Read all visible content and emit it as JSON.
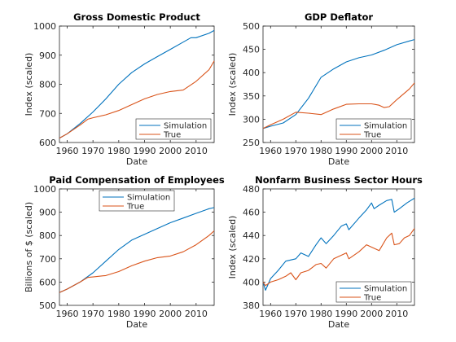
{
  "colors": {
    "simulation": "#0072bd",
    "true": "#d95319"
  },
  "chart_data": [
    {
      "type": "line",
      "title": "Gross Domestic Product",
      "xlabel": "Date",
      "ylabel": "Index (scaled)",
      "xlim": [
        1957,
        2017
      ],
      "ylim": [
        600,
        1000
      ],
      "xticks": [
        "1960",
        "1970",
        "1980",
        "1990",
        "2000",
        "2010"
      ],
      "yticks": [
        "600",
        "700",
        "800",
        "900",
        "1000"
      ],
      "legend": {
        "position": "bottom-right",
        "labels": [
          "Simulation",
          "True"
        ]
      },
      "series": [
        {
          "name": "Simulation",
          "color_key": "simulation",
          "x": [
            1957,
            1960,
            1965,
            1970,
            1975,
            1980,
            1985,
            1990,
            1995,
            2000,
            2005,
            2008,
            2010,
            2015,
            2017
          ],
          "y": [
            615,
            630,
            665,
            705,
            750,
            800,
            840,
            870,
            895,
            920,
            945,
            960,
            960,
            975,
            985
          ]
        },
        {
          "name": "True",
          "color_key": "true",
          "x": [
            1957,
            1960,
            1965,
            1968,
            1970,
            1975,
            1980,
            1985,
            1990,
            1995,
            2000,
            2005,
            2010,
            2015,
            2017
          ],
          "y": [
            615,
            630,
            660,
            680,
            685,
            695,
            710,
            730,
            750,
            765,
            775,
            780,
            810,
            850,
            880
          ]
        }
      ]
    },
    {
      "type": "line",
      "title": "GDP Deflator",
      "xlabel": "Date",
      "ylabel": "Index (scaled)",
      "xlim": [
        1957,
        2017
      ],
      "ylim": [
        250,
        500
      ],
      "xticks": [
        "1960",
        "1970",
        "1980",
        "1990",
        "2000",
        "2010"
      ],
      "yticks": [
        "250",
        "300",
        "350",
        "400",
        "450",
        "500"
      ],
      "legend": {
        "position": "bottom-right",
        "labels": [
          "Simulation",
          "True"
        ]
      },
      "series": [
        {
          "name": "Simulation",
          "color_key": "simulation",
          "x": [
            1957,
            1960,
            1965,
            1970,
            1975,
            1980,
            1985,
            1990,
            1995,
            2000,
            2005,
            2010,
            2015,
            2017
          ],
          "y": [
            280,
            285,
            292,
            310,
            345,
            390,
            408,
            423,
            432,
            438,
            448,
            460,
            468,
            471
          ]
        },
        {
          "name": "True",
          "color_key": "true",
          "x": [
            1957,
            1960,
            1965,
            1970,
            1975,
            1980,
            1985,
            1990,
            1995,
            2000,
            2003,
            2005,
            2007,
            2010,
            2015,
            2017
          ],
          "y": [
            280,
            288,
            300,
            315,
            313,
            310,
            322,
            332,
            333,
            333,
            330,
            325,
            327,
            342,
            365,
            378
          ]
        }
      ]
    },
    {
      "type": "line",
      "title": "Paid Compensation of Employees",
      "xlabel": "Date",
      "ylabel": "Billions of $ (scaled)",
      "xlim": [
        1957,
        2017
      ],
      "ylim": [
        500,
        1000
      ],
      "xticks": [
        "1960",
        "1970",
        "1980",
        "1990",
        "2000",
        "2010"
      ],
      "yticks": [
        "500",
        "600",
        "700",
        "800",
        "900",
        "1000"
      ],
      "legend": {
        "position": "top-center",
        "labels": [
          "Simulation",
          "True"
        ]
      },
      "series": [
        {
          "name": "Simulation",
          "color_key": "simulation",
          "x": [
            1957,
            1960,
            1965,
            1970,
            1975,
            1980,
            1985,
            1990,
            1995,
            2000,
            2005,
            2010,
            2015,
            2017
          ],
          "y": [
            555,
            570,
            600,
            640,
            690,
            740,
            780,
            805,
            830,
            855,
            875,
            895,
            915,
            920
          ]
        },
        {
          "name": "True",
          "color_key": "true",
          "x": [
            1957,
            1960,
            1965,
            1968,
            1970,
            1975,
            1980,
            1985,
            1990,
            1995,
            2000,
            2005,
            2010,
            2015,
            2017
          ],
          "y": [
            555,
            570,
            600,
            620,
            622,
            628,
            645,
            670,
            690,
            705,
            712,
            730,
            760,
            800,
            820
          ]
        }
      ]
    },
    {
      "type": "line",
      "title": "Nonfarm Business Sector Hours",
      "xlabel": "Date",
      "ylabel": "Index (scaled)",
      "xlim": [
        1957,
        2017
      ],
      "ylim": [
        380,
        480
      ],
      "xticks": [
        "1960",
        "1970",
        "1980",
        "1990",
        "2000",
        "2010"
      ],
      "yticks": [
        "380",
        "400",
        "420",
        "440",
        "460",
        "480"
      ],
      "legend": {
        "position": "bottom-right",
        "labels": [
          "Simulation",
          "True"
        ]
      },
      "series": [
        {
          "name": "Simulation",
          "color_key": "simulation",
          "x": [
            1957,
            1958,
            1960,
            1963,
            1966,
            1970,
            1972,
            1975,
            1978,
            1980,
            1982,
            1985,
            1988,
            1990,
            1991,
            1995,
            1998,
            2000,
            2001,
            2003,
            2006,
            2008,
            2009,
            2011,
            2014,
            2017
          ],
          "y": [
            400,
            393,
            403,
            410,
            418,
            420,
            425,
            422,
            432,
            438,
            433,
            440,
            448,
            450,
            445,
            455,
            462,
            468,
            463,
            466,
            470,
            471,
            460,
            463,
            468,
            472
          ]
        },
        {
          "name": "True",
          "color_key": "true",
          "x": [
            1957,
            1958,
            1960,
            1963,
            1966,
            1968,
            1970,
            1972,
            1975,
            1978,
            1980,
            1982,
            1985,
            1990,
            1991,
            1995,
            1998,
            2000,
            2003,
            2006,
            2008,
            2009,
            2011,
            2013,
            2015,
            2017
          ],
          "y": [
            400,
            397,
            400,
            402,
            405,
            408,
            402,
            408,
            410,
            415,
            416,
            412,
            420,
            425,
            420,
            426,
            432,
            430,
            427,
            438,
            442,
            432,
            433,
            438,
            440,
            446
          ]
        }
      ]
    }
  ]
}
